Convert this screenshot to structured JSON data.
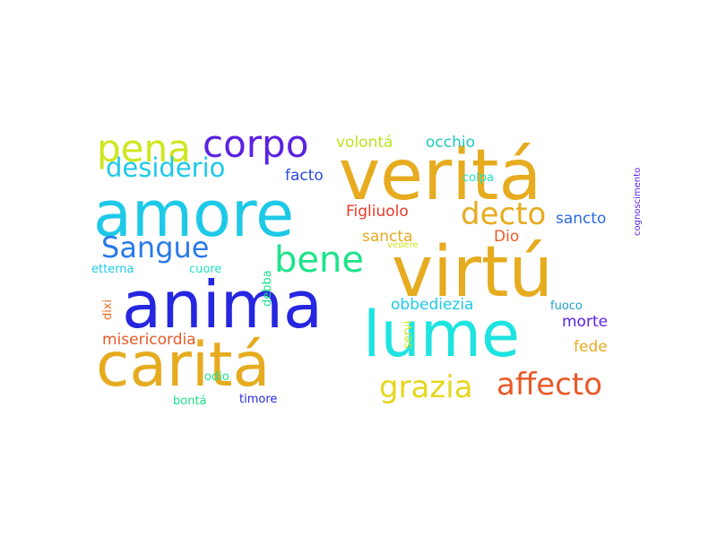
{
  "words": [
    {
      "text": "veritá",
      "color": "#e6ab1f"
    },
    {
      "text": "virtú",
      "color": "#e6ab1f"
    },
    {
      "text": "amore",
      "color": "#1ec9e8"
    },
    {
      "text": "anima",
      "color": "#2626e0"
    },
    {
      "text": "caritá",
      "color": "#e6ab1f"
    },
    {
      "text": "lume",
      "color": "#1ee3e0"
    },
    {
      "text": "pena",
      "color": "#cfe61e"
    },
    {
      "text": "corpo",
      "color": "#5a22e0"
    },
    {
      "text": "desiderio",
      "color": "#1ec9e8"
    },
    {
      "text": "Sangue",
      "color": "#2a7ae8"
    },
    {
      "text": "bene",
      "color": "#1ee38a"
    },
    {
      "text": "grazia",
      "color": "#e6d61e"
    },
    {
      "text": "affecto",
      "color": "#e85a28"
    },
    {
      "text": "decto",
      "color": "#e6ab1f"
    },
    {
      "text": "volontá",
      "color": "#b8e61e"
    },
    {
      "text": "occhio",
      "color": "#1ec9c0"
    },
    {
      "text": "facto",
      "color": "#2a4ae0"
    },
    {
      "text": "Figliuolo",
      "color": "#e83a2a"
    },
    {
      "text": "sancto",
      "color": "#2a6ae0"
    },
    {
      "text": "colpa",
      "color": "#1ee3c0"
    },
    {
      "text": "sancta",
      "color": "#e6ab1f"
    },
    {
      "text": "Dio",
      "color": "#e85a28"
    },
    {
      "text": "etterna",
      "color": "#1ec9e8"
    },
    {
      "text": "cuore",
      "color": "#1ee3c0"
    },
    {
      "text": "debba",
      "color": "#1ee38a"
    },
    {
      "text": "dixi",
      "color": "#e86a28"
    },
    {
      "text": "obbediezia",
      "color": "#1ec9e8"
    },
    {
      "text": "fuoco",
      "color": "#1ea0c9"
    },
    {
      "text": "morte",
      "color": "#5a22e0"
    },
    {
      "text": "servi",
      "color": "#cfe61e"
    },
    {
      "text": "misericordia",
      "color": "#e85a28"
    },
    {
      "text": "fede",
      "color": "#e6ab1f"
    },
    {
      "text": "odio",
      "color": "#1ee38a"
    },
    {
      "text": "bontá",
      "color": "#1ee38a"
    },
    {
      "text": "timore",
      "color": "#2a2ae0"
    },
    {
      "text": "vedere",
      "color": "#cfe61e"
    },
    {
      "text": "cognoscimento",
      "color": "#5a22e0"
    }
  ]
}
